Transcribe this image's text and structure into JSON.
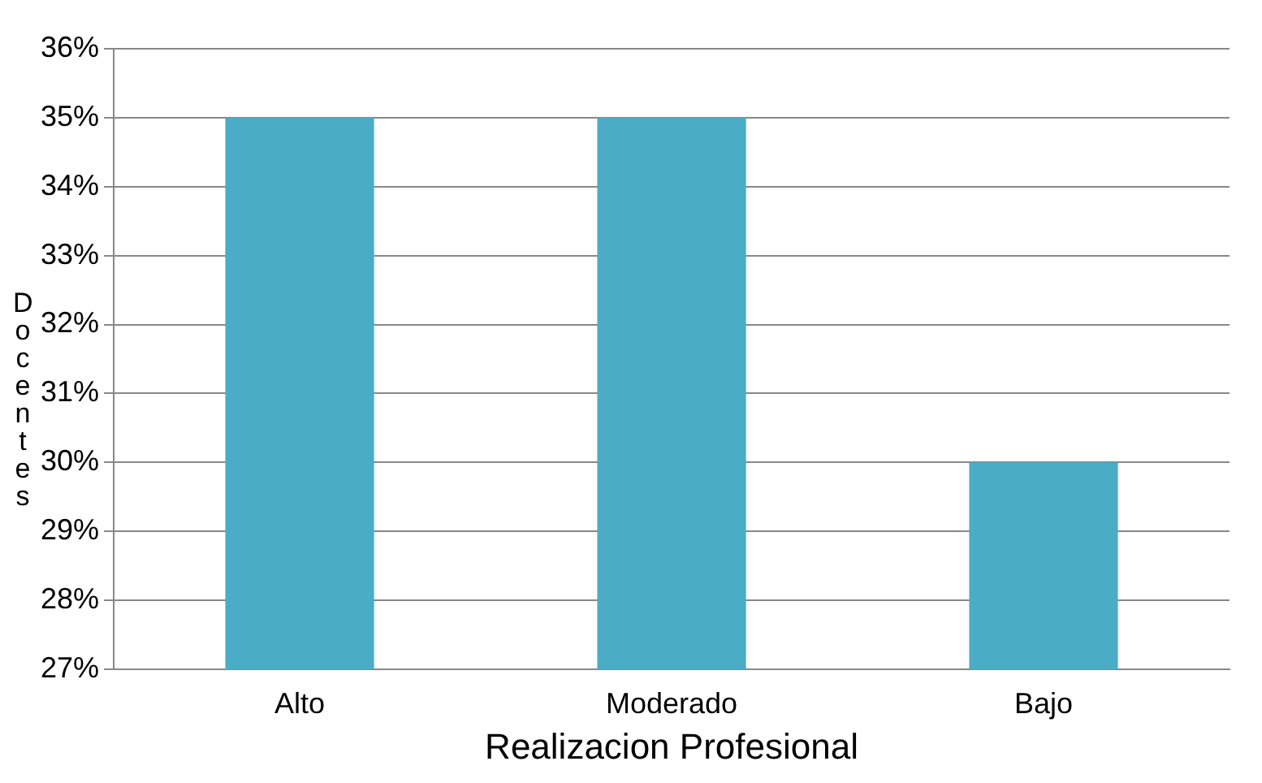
{
  "chart_data": {
    "type": "bar",
    "xlabel": "Realizacion Profesional",
    "ylabel": "Docentes",
    "categories": [
      "Alto",
      "Moderado",
      "Bajo"
    ],
    "values": [
      35,
      35,
      30
    ],
    "color": "#4bacc6",
    "ylim": [
      27,
      36
    ],
    "yticks": [
      {
        "value": 27,
        "label": "27%"
      },
      {
        "value": 28,
        "label": "28%"
      },
      {
        "value": 29,
        "label": "29%"
      },
      {
        "value": 30,
        "label": "30%"
      },
      {
        "value": 31,
        "label": "31%"
      },
      {
        "value": 32,
        "label": "32%"
      },
      {
        "value": 33,
        "label": "33%"
      },
      {
        "value": 34,
        "label": "34%"
      },
      {
        "value": 35,
        "label": "35%"
      },
      {
        "value": 36,
        "label": "36%"
      }
    ],
    "grid": "y",
    "legend": false
  }
}
